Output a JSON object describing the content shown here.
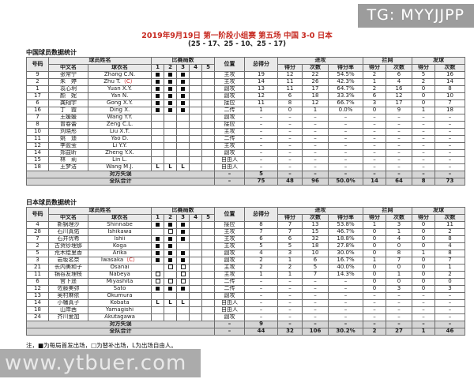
{
  "watermarks": {
    "top_right": "TG: MYYJJPP",
    "bottom_left": "www.ytbuer.com"
  },
  "header": {
    "title": "2019年9月19日  第一阶段小组赛  第五场  中国 3-0 日本",
    "subtitle": "(25 - 17、25 - 10、25 - 17)"
  },
  "note": "注，■为每局首发出场，□为替补出场，L为出场自由人。",
  "captain_mark": "（C）",
  "set_glyphs": {
    "S": "■",
    "B": "□",
    "L": "L"
  },
  "columns": {
    "number": "号码",
    "player_name": "球员姓名",
    "chinese_name": "中文名",
    "jersey_name": "球衣名",
    "sets_played": "比赛局数",
    "set_1": "1",
    "set_2": "2",
    "set_3": "3",
    "set_4": "4",
    "set_5": "5",
    "position": "位置",
    "total_points": "总得分",
    "attack": "进攻",
    "block": "拦网",
    "serve": "发球",
    "points": "得分",
    "attempts": "次数",
    "pct": "得分率"
  },
  "tables": [
    {
      "key": "china",
      "title": "中国球员数据统计",
      "rows": [
        {
          "no": "9",
          "cn": "张常宁",
          "en": "Zhang C.N.",
          "captain": false,
          "sets": [
            "S",
            "S",
            "S",
            "",
            ""
          ],
          "pos": "主攻",
          "total": "19",
          "atk_pts": "12",
          "atk_att": "22",
          "atk_pct": "54.5%",
          "blk_pts": "2",
          "blk_att": "6",
          "srv_pts": "5",
          "srv_att": "16"
        },
        {
          "no": "2",
          "cn": "朱　婷",
          "en": "Zhu T.",
          "captain": true,
          "sets": [
            "S",
            "S",
            "S",
            "",
            ""
          ],
          "pos": "主攻",
          "total": "14",
          "atk_pts": "11",
          "atk_att": "26",
          "atk_pct": "42.3%",
          "blk_pts": "1",
          "blk_att": "4",
          "srv_pts": "2",
          "srv_att": "14"
        },
        {
          "no": "1",
          "cn": "袁心玥",
          "en": "Yuan X.Y.",
          "captain": false,
          "sets": [
            "S",
            "S",
            "S",
            "",
            ""
          ],
          "pos": "副攻",
          "total": "13",
          "atk_pts": "11",
          "atk_att": "17",
          "atk_pct": "64.7%",
          "blk_pts": "2",
          "blk_att": "16",
          "srv_pts": "0",
          "srv_att": "8"
        },
        {
          "no": "17",
          "cn": "颜　妮",
          "en": "Yan N.",
          "captain": false,
          "sets": [
            "S",
            "S",
            "S",
            "",
            ""
          ],
          "pos": "副攻",
          "total": "12",
          "atk_pts": "6",
          "atk_att": "18",
          "atk_pct": "33.3%",
          "blk_pts": "6",
          "blk_att": "12",
          "srv_pts": "0",
          "srv_att": "10"
        },
        {
          "no": "6",
          "cn": "龚翔宇",
          "en": "Gong X.Y.",
          "captain": false,
          "sets": [
            "S",
            "S",
            "S",
            "",
            ""
          ],
          "pos": "接应",
          "total": "11",
          "atk_pts": "8",
          "atk_att": "12",
          "atk_pct": "66.7%",
          "blk_pts": "3",
          "blk_att": "17",
          "srv_pts": "0",
          "srv_att": "7"
        },
        {
          "no": "16",
          "cn": "丁　霞",
          "en": "Ding X.",
          "captain": false,
          "sets": [
            "S",
            "S",
            "S",
            "",
            ""
          ],
          "pos": "二传",
          "total": "1",
          "atk_pts": "0",
          "atk_att": "1",
          "atk_pct": "0.0%",
          "blk_pts": "0",
          "blk_att": "9",
          "srv_pts": "1",
          "srv_att": "18"
        },
        {
          "no": "7",
          "cn": "王媛媛",
          "en": "Wang Y.Y.",
          "captain": false,
          "sets": [
            "",
            "",
            "",
            "",
            ""
          ],
          "pos": "副攻",
          "total": "–",
          "atk_pts": "–",
          "atk_att": "–",
          "atk_pct": "–",
          "blk_pts": "–",
          "blk_att": "–",
          "srv_pts": "–",
          "srv_att": "–"
        },
        {
          "no": "8",
          "cn": "曾春蕾",
          "en": "Zeng C.L.",
          "captain": false,
          "sets": [
            "",
            "",
            "",
            "",
            ""
          ],
          "pos": "接应",
          "total": "–",
          "atk_pts": "–",
          "atk_att": "–",
          "atk_pct": "–",
          "blk_pts": "–",
          "blk_att": "–",
          "srv_pts": "–",
          "srv_att": "–"
        },
        {
          "no": "10",
          "cn": "刘晓彤",
          "en": "Liu X.T.",
          "captain": false,
          "sets": [
            "",
            "",
            "",
            "",
            ""
          ],
          "pos": "主攻",
          "total": "–",
          "atk_pts": "–",
          "atk_att": "–",
          "atk_pct": "–",
          "blk_pts": "–",
          "blk_att": "–",
          "srv_pts": "–",
          "srv_att": "–"
        },
        {
          "no": "11",
          "cn": "姚　迪",
          "en": "Yao D.",
          "captain": false,
          "sets": [
            "",
            "",
            "",
            "",
            ""
          ],
          "pos": "二传",
          "total": "–",
          "atk_pts": "–",
          "atk_att": "–",
          "atk_pct": "–",
          "blk_pts": "–",
          "blk_att": "–",
          "srv_pts": "–",
          "srv_att": "–"
        },
        {
          "no": "12",
          "cn": "李盈莹",
          "en": "Li Y.Y.",
          "captain": false,
          "sets": [
            "",
            "",
            "",
            "",
            ""
          ],
          "pos": "主攻",
          "total": "–",
          "atk_pts": "–",
          "atk_att": "–",
          "atk_pct": "–",
          "blk_pts": "–",
          "blk_att": "–",
          "srv_pts": "–",
          "srv_att": "–"
        },
        {
          "no": "14",
          "cn": "郑益昕",
          "en": "Zheng Y.X.",
          "captain": false,
          "sets": [
            "",
            "",
            "",
            "",
            ""
          ],
          "pos": "副攻",
          "total": "–",
          "atk_pts": "–",
          "atk_att": "–",
          "atk_pct": "–",
          "blk_pts": "–",
          "blk_att": "–",
          "srv_pts": "–",
          "srv_att": "–"
        },
        {
          "no": "15",
          "cn": "林　莉",
          "en": "Lin L.",
          "captain": false,
          "sets": [
            "",
            "",
            "",
            "",
            ""
          ],
          "pos": "自由人",
          "total": "–",
          "atk_pts": "–",
          "atk_att": "–",
          "atk_pct": "–",
          "blk_pts": "–",
          "blk_att": "–",
          "srv_pts": "–",
          "srv_att": "–"
        },
        {
          "no": "18",
          "cn": "王梦洁",
          "en": "Wang M.J.",
          "captain": false,
          "sets": [
            "L",
            "L",
            "L",
            "",
            ""
          ],
          "pos": "自由人",
          "total": "–",
          "atk_pts": "–",
          "atk_att": "–",
          "atk_pct": "–",
          "blk_pts": "–",
          "blk_att": "–",
          "srv_pts": "–",
          "srv_att": "–"
        }
      ],
      "opponent_errors": {
        "label": "对方失误",
        "pos": "–",
        "total": "5",
        "atk_pts": "–",
        "atk_att": "–",
        "atk_pct": "–",
        "blk_pts": "–",
        "blk_att": "–",
        "srv_pts": "–",
        "srv_att": "–"
      },
      "team_total": {
        "label": "全队合计",
        "pos": "–",
        "total": "75",
        "atk_pts": "48",
        "atk_att": "96",
        "atk_pct": "50.0%",
        "blk_pts": "14",
        "blk_att": "64",
        "srv_pts": "8",
        "srv_att": "73"
      }
    },
    {
      "key": "japan",
      "title": "日本球员数据统计",
      "rows": [
        {
          "no": "4",
          "cn": "新锅理沙",
          "en": "Shinnabe",
          "captain": false,
          "sets": [
            "S",
            "S",
            "S",
            "",
            ""
          ],
          "pos": "接应",
          "total": "8",
          "atk_pts": "7",
          "atk_att": "13",
          "atk_pct": "53.8%",
          "blk_pts": "1",
          "blk_att": "3",
          "srv_pts": "0",
          "srv_att": "11"
        },
        {
          "no": "28",
          "cn": "石川真佑",
          "en": "Ishikawa",
          "captain": false,
          "sets": [
            "",
            "B",
            "S",
            "",
            ""
          ],
          "pos": "主攻",
          "total": "7",
          "atk_pts": "7",
          "atk_att": "15",
          "atk_pct": "46.7%",
          "blk_pts": "0",
          "blk_att": "1",
          "srv_pts": "0",
          "srv_att": "2"
        },
        {
          "no": "7",
          "cn": "石井优希",
          "en": "Ishii",
          "captain": false,
          "sets": [
            "S",
            "S",
            "S",
            "",
            ""
          ],
          "pos": "主攻",
          "total": "6",
          "atk_pts": "6",
          "atk_att": "32",
          "atk_pct": "18.8%",
          "blk_pts": "0",
          "blk_att": "4",
          "srv_pts": "0",
          "srv_att": "8"
        },
        {
          "no": "2",
          "cn": "古贺纱理那",
          "en": "Koga",
          "captain": false,
          "sets": [
            "S",
            "S",
            "",
            "",
            ""
          ],
          "pos": "主攻",
          "total": "5",
          "atk_pts": "5",
          "atk_att": "18",
          "atk_pct": "27.8%",
          "blk_pts": "0",
          "blk_att": "0",
          "srv_pts": "0",
          "srv_att": "4"
        },
        {
          "no": "5",
          "cn": "荒木绘里香",
          "en": "Arika",
          "captain": false,
          "sets": [
            "S",
            "S",
            "S",
            "",
            ""
          ],
          "pos": "副攻",
          "total": "4",
          "atk_pts": "3",
          "atk_att": "10",
          "atk_pct": "30.0%",
          "blk_pts": "0",
          "blk_att": "8",
          "srv_pts": "1",
          "srv_att": "8"
        },
        {
          "no": "3",
          "cn": "岩坂名奈",
          "en": "Iwasaka",
          "captain": true,
          "sets": [
            "S",
            "S",
            "S",
            "",
            ""
          ],
          "pos": "副攻",
          "total": "2",
          "atk_pts": "1",
          "atk_att": "6",
          "atk_pct": "16.7%",
          "blk_pts": "1",
          "blk_att": "7",
          "srv_pts": "0",
          "srv_att": "7"
        },
        {
          "no": "21",
          "cn": "长内美和子",
          "en": "Osanai",
          "captain": false,
          "sets": [
            "",
            "B",
            "B",
            "",
            ""
          ],
          "pos": "主攻",
          "total": "2",
          "atk_pts": "2",
          "atk_att": "5",
          "atk_pct": "40.0%",
          "blk_pts": "0",
          "blk_att": "0",
          "srv_pts": "0",
          "srv_att": "1"
        },
        {
          "no": "11",
          "cn": "锅谷友理枝",
          "en": "Nabeya",
          "captain": false,
          "sets": [
            "B",
            "",
            "B",
            "",
            ""
          ],
          "pos": "主攻",
          "total": "1",
          "atk_pts": "1",
          "atk_att": "7",
          "atk_pct": "14.3%",
          "blk_pts": "0",
          "blk_att": "1",
          "srv_pts": "0",
          "srv_att": "2"
        },
        {
          "no": "6",
          "cn": "宫下遥",
          "en": "Miyashita",
          "captain": false,
          "sets": [
            "B",
            "B",
            "B",
            "",
            ""
          ],
          "pos": "二传",
          "total": "–",
          "atk_pts": "–",
          "atk_att": "–",
          "atk_pct": "–",
          "blk_pts": "0",
          "blk_att": "0",
          "srv_pts": "0",
          "srv_att": "0"
        },
        {
          "no": "12",
          "cn": "佐藤美弥",
          "en": "Sato",
          "captain": false,
          "sets": [
            "S",
            "S",
            "S",
            "",
            ""
          ],
          "pos": "二传",
          "total": "–",
          "atk_pts": "–",
          "atk_att": "–",
          "atk_pct": "–",
          "blk_pts": "0",
          "blk_att": "3",
          "srv_pts": "0",
          "srv_att": "3"
        },
        {
          "no": "13",
          "cn": "奥村麻依",
          "en": "Okumura",
          "captain": false,
          "sets": [
            "",
            "",
            "",
            "",
            ""
          ],
          "pos": "副攻",
          "total": "–",
          "atk_pts": "–",
          "atk_att": "–",
          "atk_pct": "–",
          "blk_pts": "–",
          "blk_att": "–",
          "srv_pts": "–",
          "srv_att": "–"
        },
        {
          "no": "14",
          "cn": "小幡真子",
          "en": "Kobata",
          "captain": false,
          "sets": [
            "L",
            "L",
            "L",
            "",
            ""
          ],
          "pos": "自由人",
          "total": "–",
          "atk_pts": "–",
          "atk_att": "–",
          "atk_pct": "–",
          "blk_pts": "–",
          "blk_att": "–",
          "srv_pts": "–",
          "srv_att": "–"
        },
        {
          "no": "18",
          "cn": "山岸茜",
          "en": "Yamagishi",
          "captain": false,
          "sets": [
            "",
            "",
            "",
            "",
            ""
          ],
          "pos": "自由人",
          "total": "–",
          "atk_pts": "–",
          "atk_att": "–",
          "atk_pct": "–",
          "blk_pts": "–",
          "blk_att": "–",
          "srv_pts": "–",
          "srv_att": "–"
        },
        {
          "no": "24",
          "cn": "芥川爱加",
          "en": "Akutagawa",
          "captain": false,
          "sets": [
            "",
            "",
            "",
            "",
            ""
          ],
          "pos": "副攻",
          "total": "–",
          "atk_pts": "–",
          "atk_att": "–",
          "atk_pct": "–",
          "blk_pts": "–",
          "blk_att": "–",
          "srv_pts": "–",
          "srv_att": "–"
        }
      ],
      "opponent_errors": {
        "label": "对方失误",
        "pos": "–",
        "total": "9",
        "atk_pts": "–",
        "atk_att": "–",
        "atk_pct": "–",
        "blk_pts": "–",
        "blk_att": "–",
        "srv_pts": "–",
        "srv_att": "–"
      },
      "team_total": {
        "label": "全队合计",
        "pos": "–",
        "total": "44",
        "atk_pts": "32",
        "atk_att": "106",
        "atk_pct": "30.2%",
        "blk_pts": "2",
        "blk_att": "27",
        "srv_pts": "1",
        "srv_att": "46"
      }
    }
  ]
}
